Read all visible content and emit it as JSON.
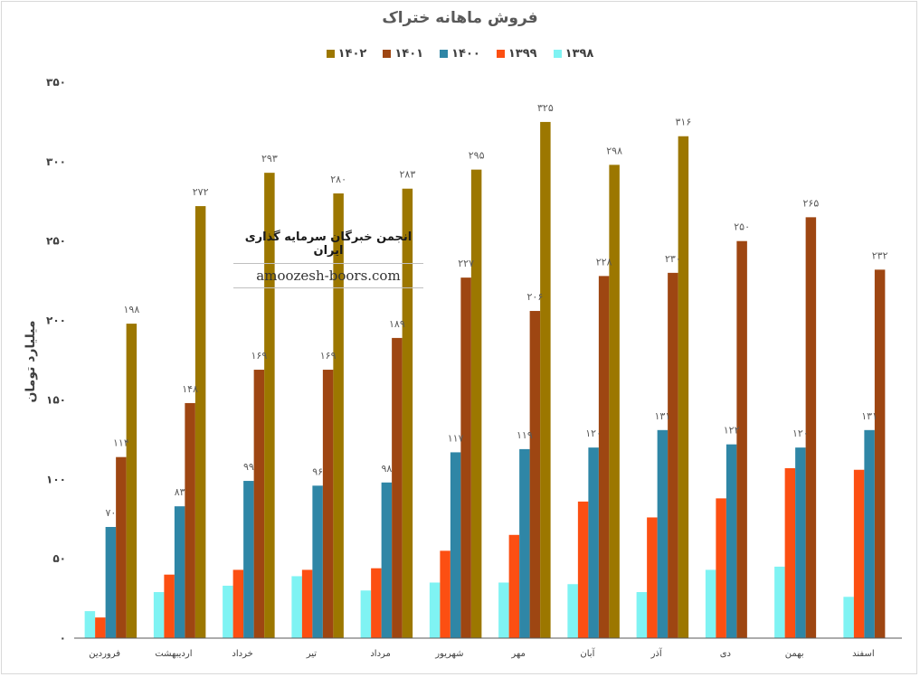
{
  "chart_data": {
    "type": "bar",
    "title": "فروش ماهانه ختراک",
    "ylabel": "میلیارد تومان",
    "ylim": [
      0,
      350
    ],
    "yticks": [
      "۰",
      "۵۰",
      "۱۰۰",
      "۱۵۰",
      "۲۰۰",
      "۲۵۰",
      "۳۰۰",
      "۳۵۰"
    ],
    "ytick_values": [
      0,
      50,
      100,
      150,
      200,
      250,
      300,
      350
    ],
    "grid": false,
    "legend_position": "top",
    "categories": [
      "فروردین",
      "اردیبهشت",
      "خرداد",
      "تیر",
      "مرداد",
      "شهریور",
      "مهر",
      "آبان",
      "آذر",
      "دی",
      "بهمن",
      "اسفند"
    ],
    "series": [
      {
        "name": "۱۳۹۸",
        "color": "#7ff3f3",
        "values": [
          17,
          29,
          33,
          39,
          30,
          35,
          35,
          34,
          29,
          43,
          45,
          26
        ],
        "labels": [
          "",
          "",
          "",
          "",
          "",
          "",
          "",
          "",
          "",
          "",
          "",
          ""
        ]
      },
      {
        "name": "۱۳۹۹",
        "color": "#fc4f12",
        "values": [
          13,
          40,
          43,
          43,
          44,
          55,
          65,
          86,
          76,
          88,
          107,
          106
        ],
        "labels": [
          "",
          "",
          "",
          "",
          "",
          "",
          "",
          "",
          "",
          "",
          "",
          ""
        ]
      },
      {
        "name": "۱۴۰۰",
        "color": "#2f86a6",
        "values": [
          70,
          83,
          99,
          96,
          98,
          117,
          119,
          120,
          131,
          122,
          120,
          131
        ],
        "labels": [
          "۷۰",
          "۸۳",
          "۹۹",
          "۹۶",
          "۹۸",
          "۱۱۷",
          "۱۱۹",
          "۱۲۰",
          "۱۳۱",
          "۱۲۲",
          "۱۲۰",
          "۱۳۱"
        ]
      },
      {
        "name": "۱۴۰۱",
        "color": "#9e4612",
        "values": [
          114,
          148,
          169,
          169,
          189,
          227,
          206,
          228,
          230,
          250,
          265,
          232
        ],
        "labels": [
          "۱۱۴",
          "۱۴۸",
          "۱۶۹",
          "۱۶۹",
          "۱۸۹",
          "۲۲۷",
          "۲۰۶",
          "۲۲۸",
          "۲۳۰",
          "۲۵۰",
          "۲۶۵",
          "۲۳۲"
        ]
      },
      {
        "name": "۱۴۰۲",
        "color": "#9c7700",
        "values": [
          198,
          272,
          293,
          280,
          283,
          295,
          325,
          298,
          316,
          null,
          null,
          null
        ],
        "labels": [
          "۱۹۸",
          "۲۷۲",
          "۲۹۳",
          "۲۸۰",
          "۲۸۳",
          "۲۹۵",
          "۳۲۵",
          "۲۹۸",
          "۳۱۶",
          "",
          "",
          ""
        ]
      }
    ]
  },
  "watermark": {
    "title": "انجمن خبرگان سرمایه گذاری ایران",
    "url": "amoozesh-boors.com"
  }
}
